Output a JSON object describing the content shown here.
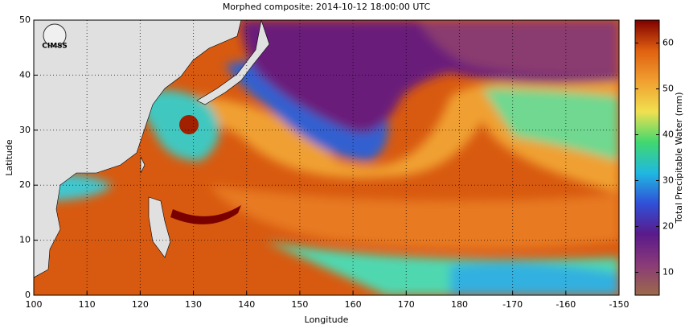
{
  "title": "Morphed composite: 2014-10-12 18:00:00 UTC",
  "map": {
    "xlabel": "Longitude",
    "ylabel": "Latitude",
    "xlim": [
      100,
      -150
    ],
    "ylim": [
      0,
      50
    ],
    "xticks": [
      100,
      110,
      120,
      130,
      140,
      150,
      160,
      170,
      180,
      -170,
      -160,
      -150
    ],
    "yticks": [
      0,
      10,
      20,
      30,
      40,
      50
    ]
  },
  "colorbar": {
    "label": "Total Precipitable Water (mm)",
    "lim": [
      5,
      65
    ],
    "ticks": [
      10,
      20,
      30,
      40,
      50,
      60
    ],
    "colors": [
      "#9c6a4a",
      "#8a3a78",
      "#5a1a8a",
      "#3050d8",
      "#20b8e0",
      "#40d870",
      "#f0e050",
      "#f0a030",
      "#e06010",
      "#800000"
    ]
  },
  "logo": "CIMSS"
}
